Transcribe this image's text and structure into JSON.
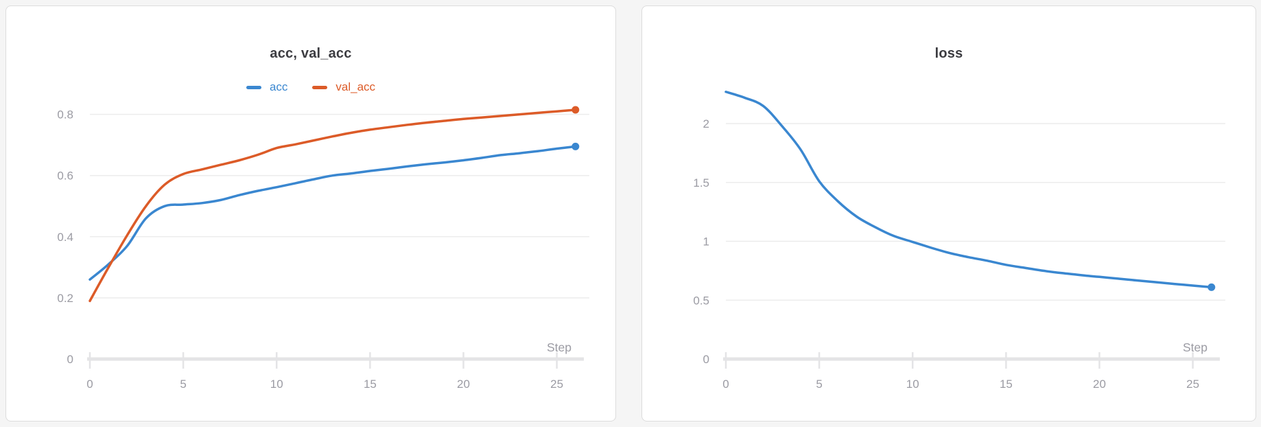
{
  "colors": {
    "acc_blue": "#3a87d0",
    "val_acc_orange": "#dc5b28",
    "loss_blue": "#3a87d0",
    "grid": "#ececec",
    "axis": "#e4e4e6",
    "tick_label": "#9b9ba3",
    "title": "#3c3c41",
    "panel_background": "#ffffff",
    "panel_border": "#dcdcdc",
    "page_background": "#f5f5f5"
  },
  "chart_data": [
    {
      "type": "line",
      "title": "acc, val_acc",
      "xlabel": "Step",
      "grid": true,
      "legend_position": "top",
      "x": [
        0,
        1,
        2,
        3,
        4,
        5,
        6,
        7,
        8,
        9,
        10,
        11,
        12,
        13,
        14,
        15,
        16,
        17,
        18,
        19,
        20,
        21,
        22,
        23,
        24,
        25,
        26
      ],
      "x_ticks": [
        0,
        5,
        10,
        15,
        20,
        25
      ],
      "xlim": [
        0,
        26.3
      ],
      "ylim": [
        0,
        0.88
      ],
      "y_ticks": [
        0,
        0.2,
        0.4,
        0.6,
        0.8
      ],
      "y_tick_labels": [
        "0",
        "0.2",
        "0.4",
        "0.6",
        "0.8"
      ],
      "series": [
        {
          "name": "acc",
          "color": "#3a87d0",
          "values": [
            0.26,
            0.31,
            0.37,
            0.46,
            0.5,
            0.505,
            0.51,
            0.52,
            0.536,
            0.55,
            0.562,
            0.575,
            0.588,
            0.6,
            0.607,
            0.615,
            0.622,
            0.63,
            0.637,
            0.643,
            0.65,
            0.658,
            0.667,
            0.673,
            0.68,
            0.688,
            0.695
          ]
        },
        {
          "name": "val_acc",
          "color": "#dc5b28",
          "values": [
            0.19,
            0.3,
            0.405,
            0.5,
            0.57,
            0.605,
            0.62,
            0.635,
            0.65,
            0.668,
            0.69,
            0.702,
            0.715,
            0.728,
            0.74,
            0.75,
            0.758,
            0.766,
            0.773,
            0.779,
            0.785,
            0.79,
            0.795,
            0.8,
            0.805,
            0.81,
            0.815
          ]
        }
      ]
    },
    {
      "type": "line",
      "title": "loss",
      "xlabel": "Step",
      "grid": true,
      "legend_position": "none",
      "x": [
        0,
        1,
        2,
        3,
        4,
        5,
        6,
        7,
        8,
        9,
        10,
        11,
        12,
        13,
        14,
        15,
        16,
        17,
        18,
        19,
        20,
        21,
        22,
        23,
        24,
        25,
        26
      ],
      "x_ticks": [
        0,
        5,
        10,
        15,
        20,
        25
      ],
      "xlim": [
        0,
        26.3
      ],
      "ylim": [
        0,
        2.286
      ],
      "y_ticks": [
        0,
        0.5,
        1,
        1.5,
        2
      ],
      "y_tick_labels": [
        "0",
        "0.5",
        "1",
        "1.5",
        "2"
      ],
      "series": [
        {
          "name": "loss",
          "color": "#3a87d0",
          "values": [
            2.27,
            2.22,
            2.15,
            1.98,
            1.78,
            1.51,
            1.34,
            1.21,
            1.12,
            1.045,
            0.995,
            0.945,
            0.9,
            0.865,
            0.835,
            0.8,
            0.775,
            0.75,
            0.73,
            0.713,
            0.698,
            0.683,
            0.668,
            0.653,
            0.638,
            0.624,
            0.61
          ]
        }
      ]
    }
  ]
}
